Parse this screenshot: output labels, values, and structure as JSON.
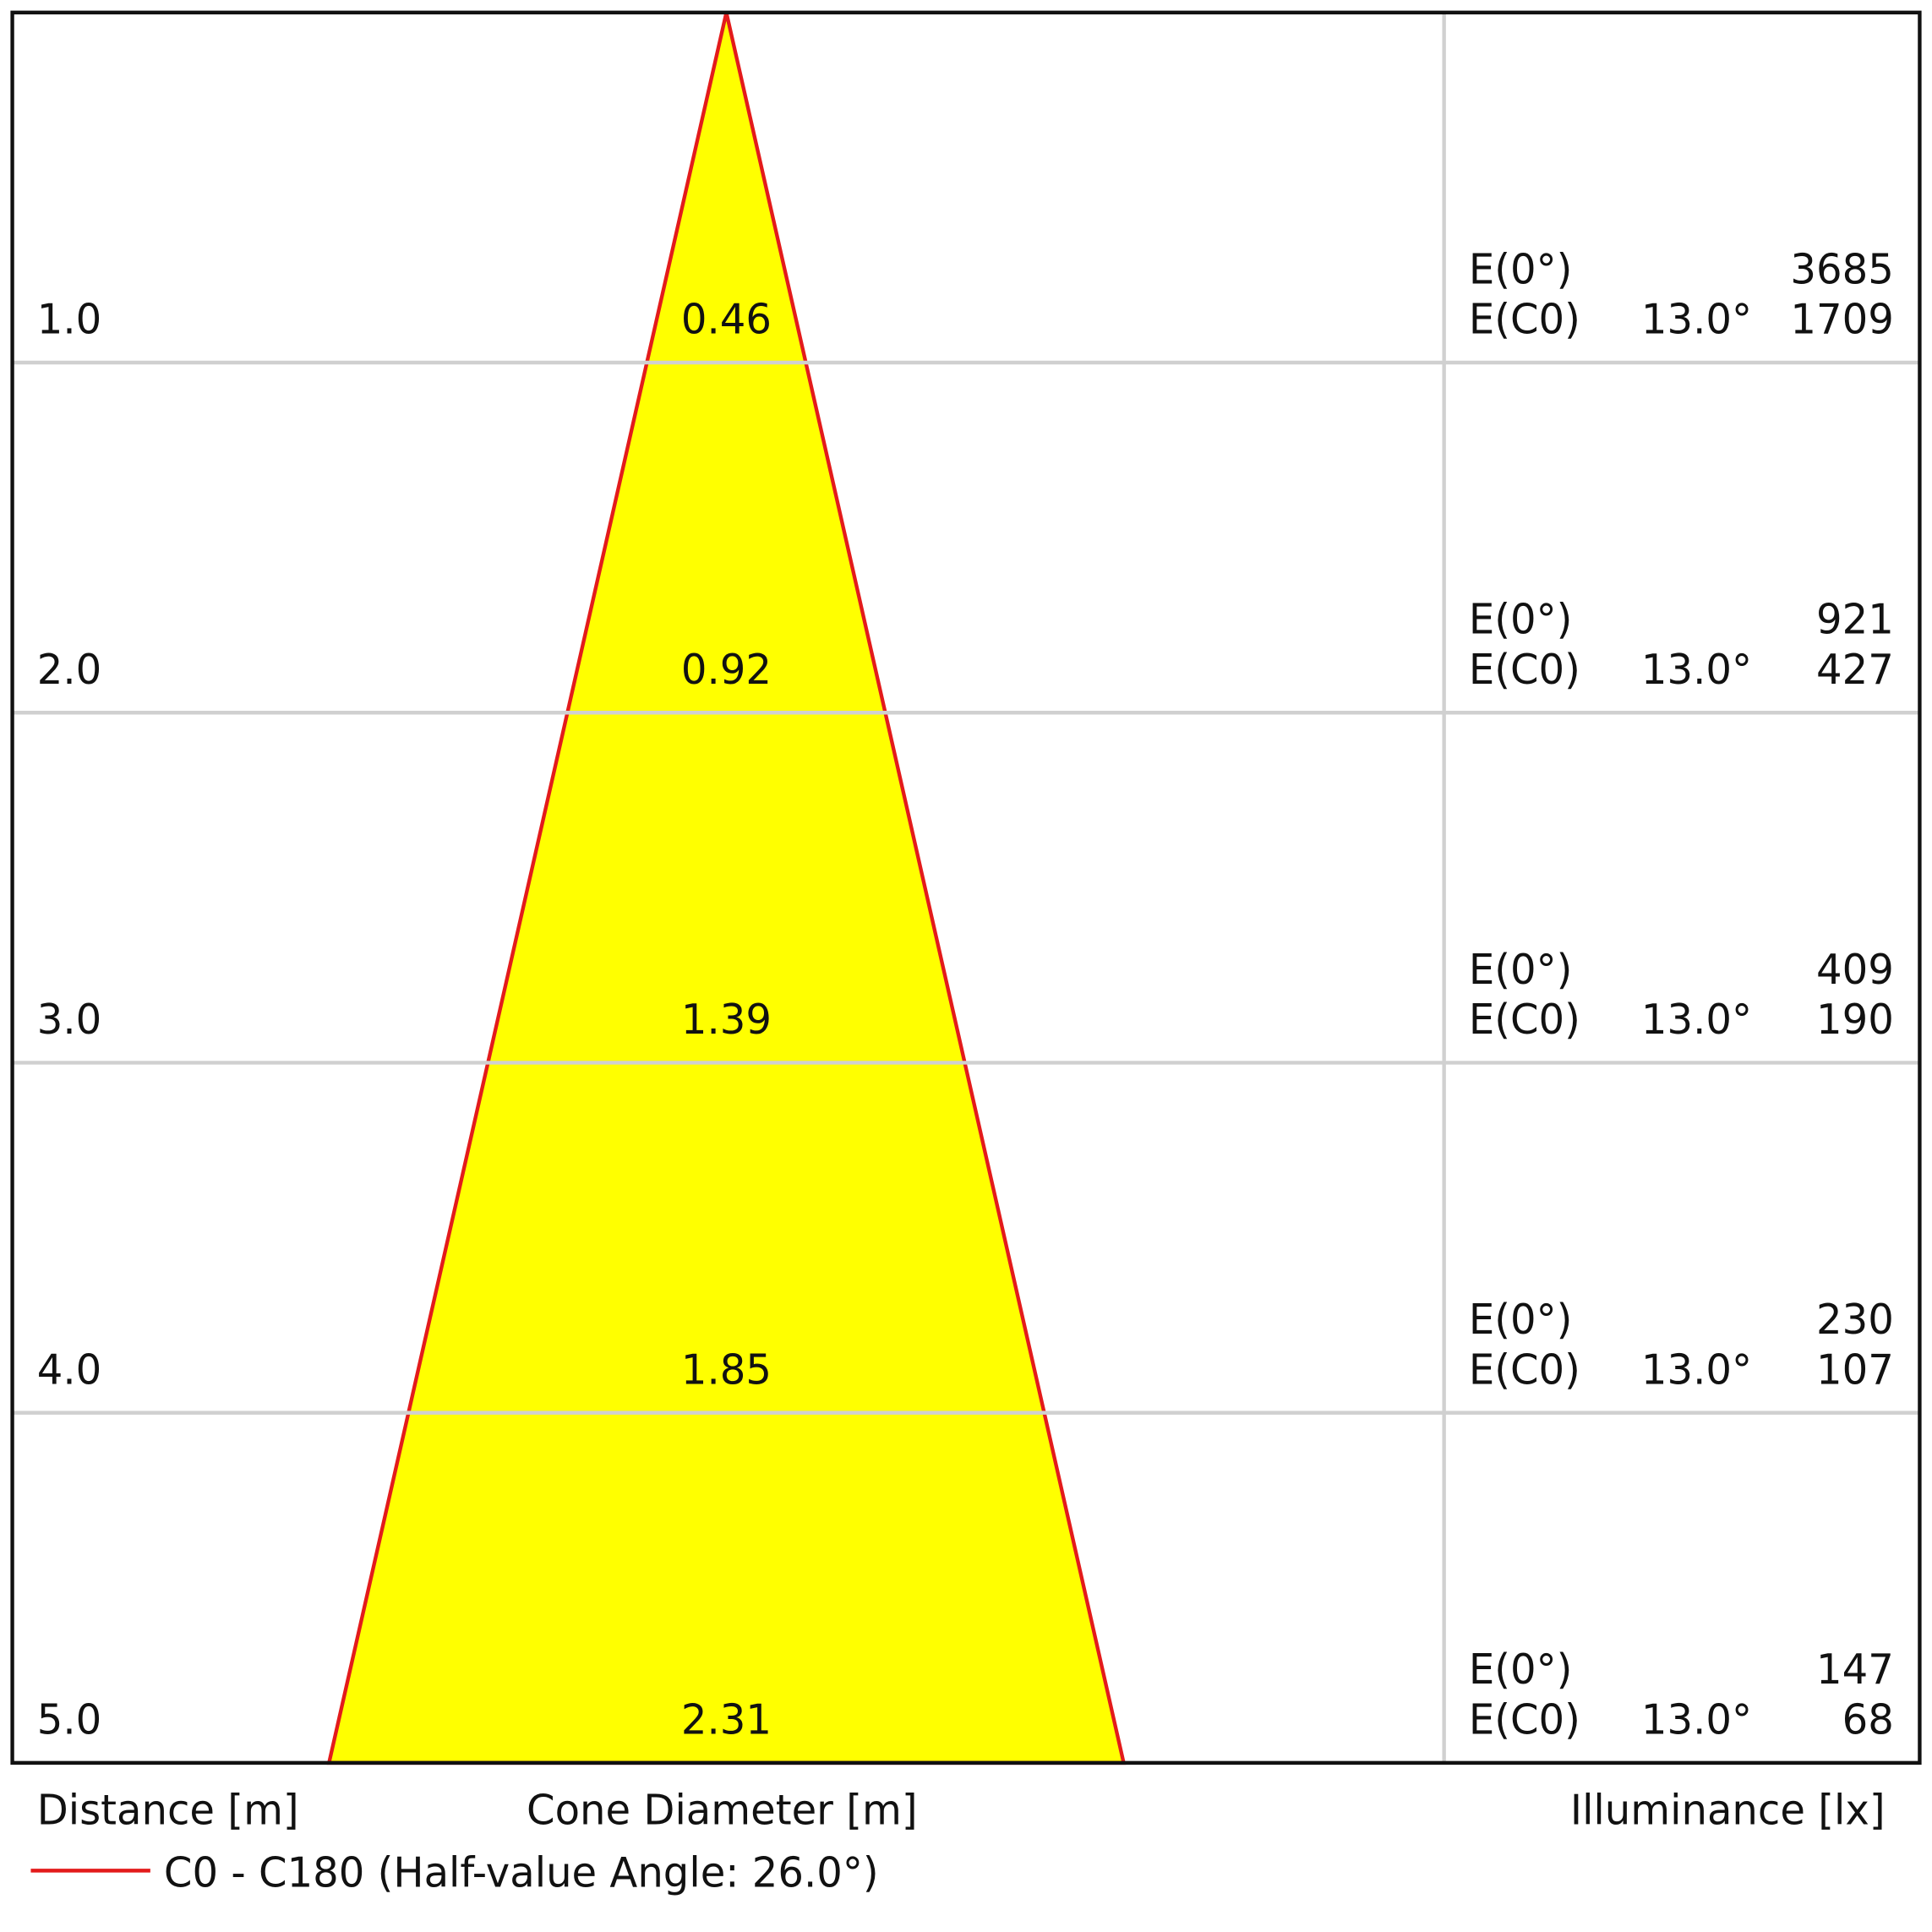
{
  "chart_data": {
    "type": "cone",
    "distance_label": "Distance [m]",
    "diameter_label": "Cone Diameter [m]",
    "illuminance_label": "Illuminance [lx]",
    "legend": "C0 - C180 (Half-value Angle: 26.0°)",
    "line_color": "#e31b1b",
    "fill_color": "#ffff00",
    "ylim": [
      0,
      5
    ],
    "distances": [
      {
        "value": 1,
        "label": "1.0"
      },
      {
        "value": 2,
        "label": "2.0"
      },
      {
        "value": 3,
        "label": "3.0"
      },
      {
        "value": 4,
        "label": "4.0"
      },
      {
        "value": 5,
        "label": "5.0"
      }
    ],
    "diameters": [
      0.46,
      0.92,
      1.39,
      1.85,
      2.31
    ],
    "e0_label": "E(0°)",
    "ec0_label": "E(C0)",
    "ec0_angle": "13.0°",
    "e0": [
      3685,
      921,
      409,
      230,
      147
    ],
    "ec0": [
      1709,
      427,
      190,
      107,
      68
    ]
  }
}
